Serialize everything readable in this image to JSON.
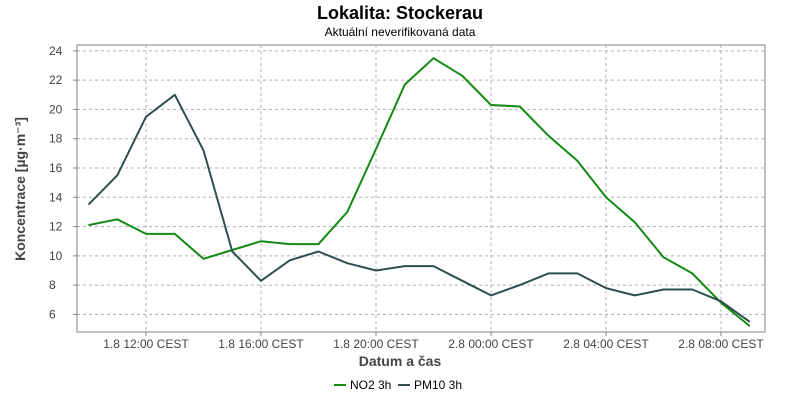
{
  "chart_data": {
    "type": "line",
    "title": "Lokalita: Stockerau",
    "subtitle": "Aktuální neverifikovaná data",
    "xlabel": "Datum a čas",
    "ylabel": "Koncentrace [µg·m⁻³]",
    "x_ticks": [
      "1.8 12:00 CEST",
      "1.8 16:00 CEST",
      "1.8 20:00 CEST",
      "2.8 00:00 CEST",
      "2.8 04:00 CEST",
      "2.8 08:00 CEST"
    ],
    "y_ticks": [
      "6",
      "8",
      "10",
      "12",
      "14",
      "16",
      "18",
      "20",
      "22",
      "24"
    ],
    "ylim": [
      4.8,
      24.4
    ],
    "x_hours_from_first_tick": [
      -2,
      -1,
      0,
      1,
      2,
      3,
      4,
      5,
      6,
      7,
      8,
      9,
      10,
      11,
      12,
      13,
      14,
      15,
      16,
      17,
      18,
      19,
      20,
      21
    ],
    "grid": true,
    "legend_position": "bottom",
    "series": [
      {
        "name": "NO2 3h",
        "color": "#138a13",
        "values": [
          12.1,
          12.5,
          11.5,
          11.5,
          9.8,
          10.4,
          11.0,
          10.8,
          10.8,
          13.0,
          17.3,
          21.7,
          23.5,
          22.3,
          20.3,
          20.2,
          18.2,
          16.5,
          14.0,
          12.3,
          9.9,
          8.8,
          6.8,
          5.2
        ]
      },
      {
        "name": "PM10 3h",
        "color": "#2f4f4f",
        "values": [
          13.5,
          15.5,
          19.5,
          21.0,
          17.2,
          10.3,
          8.3,
          9.7,
          10.3,
          9.5,
          9.0,
          9.3,
          9.3,
          8.3,
          7.3,
          8.0,
          8.8,
          8.8,
          7.8,
          7.3,
          7.7,
          7.7,
          6.9,
          5.5
        ]
      }
    ]
  }
}
